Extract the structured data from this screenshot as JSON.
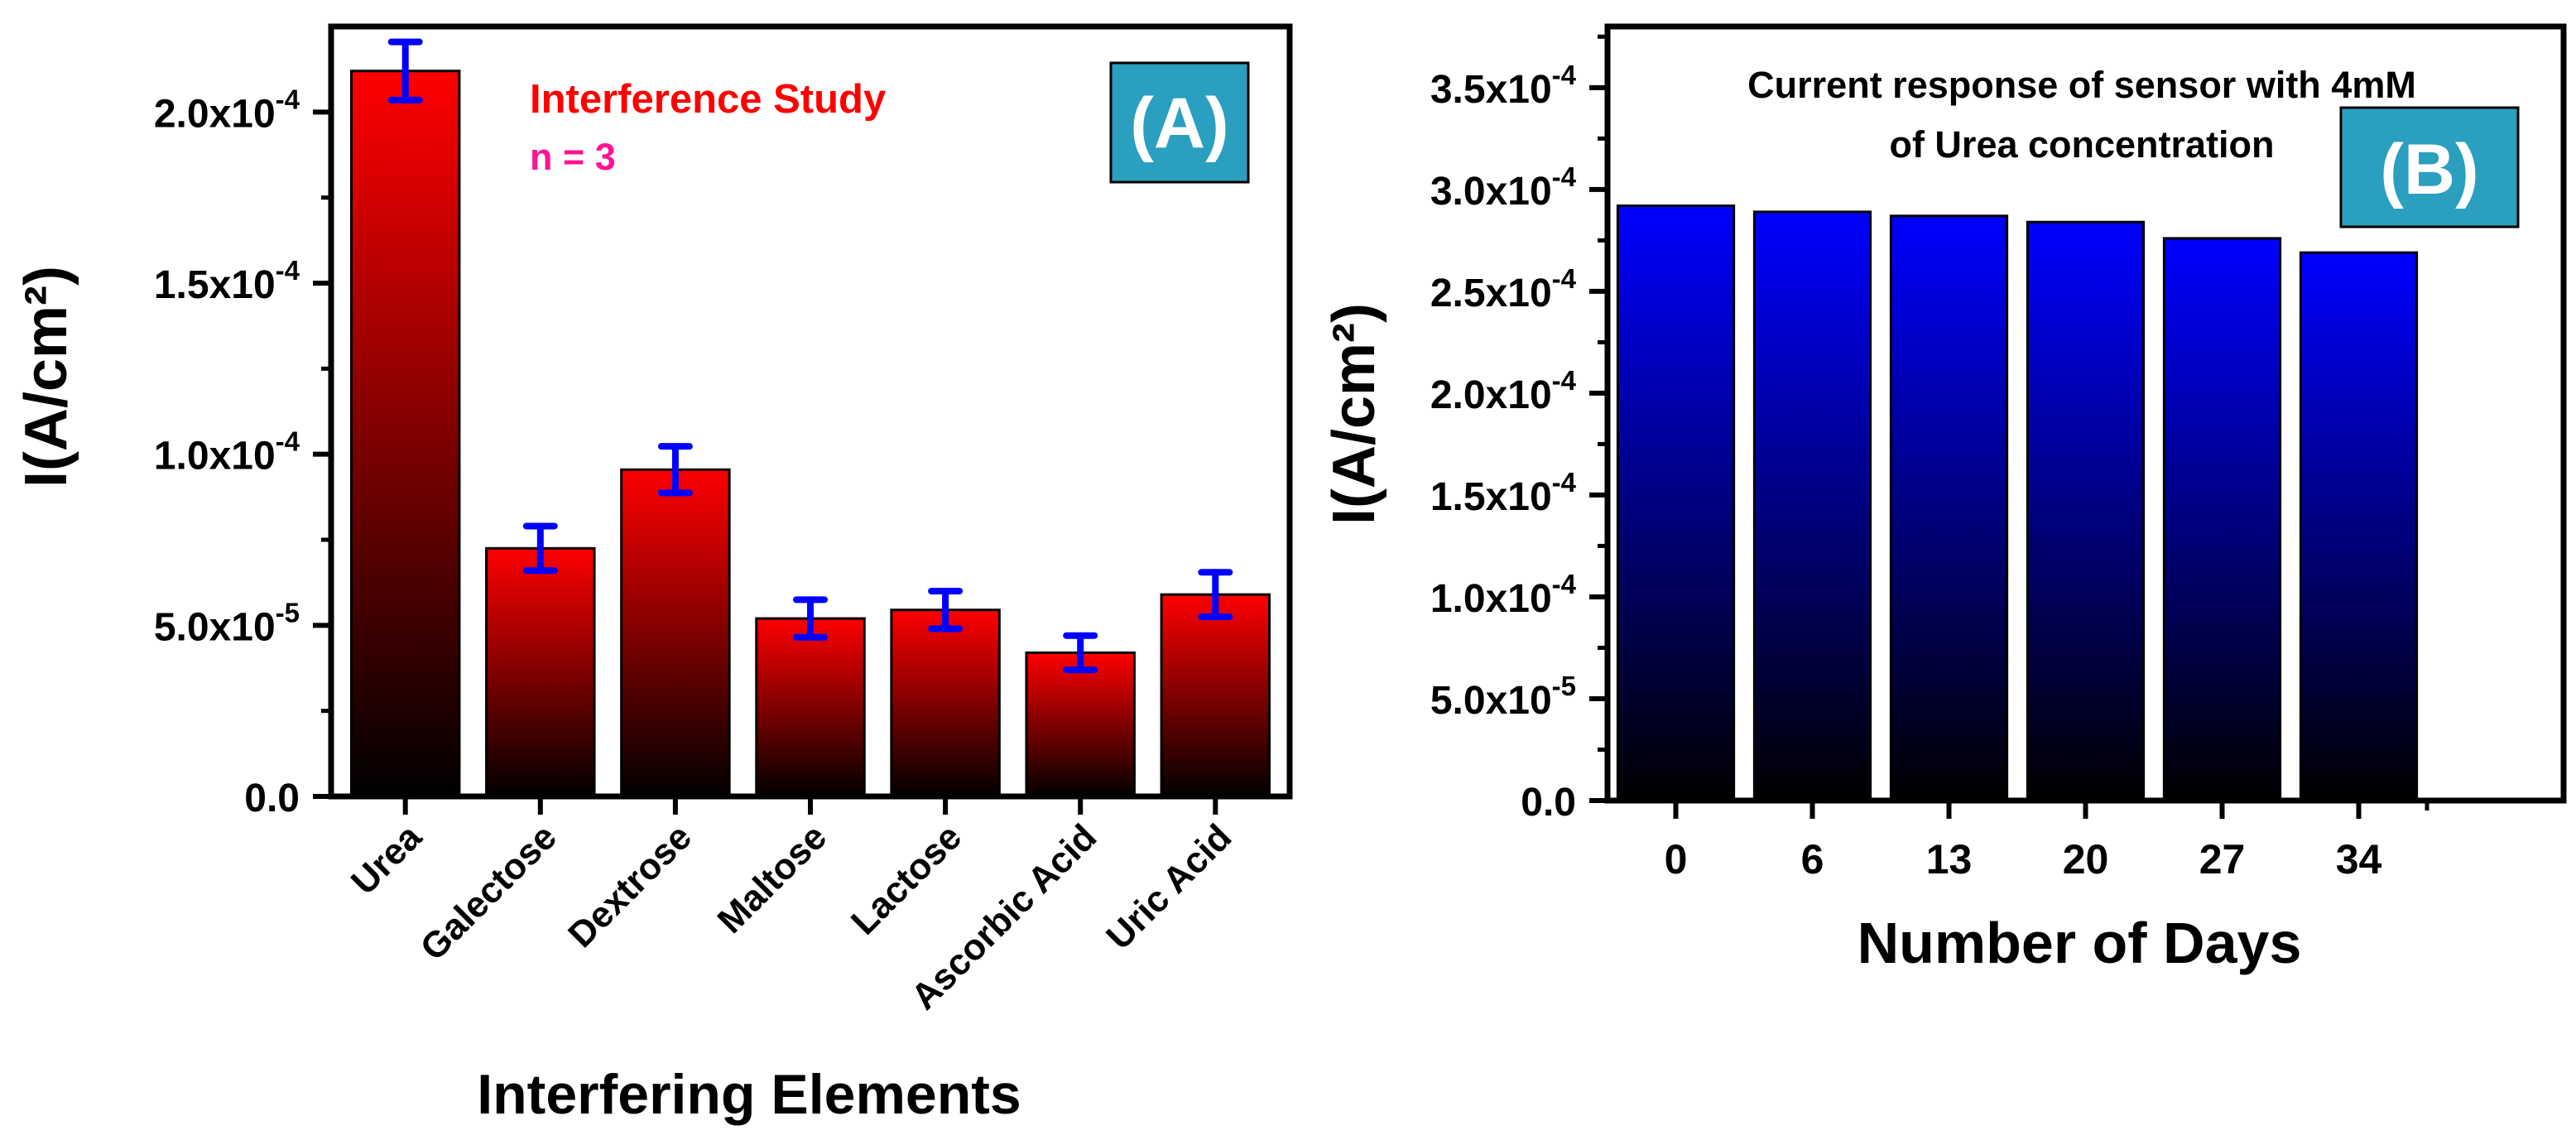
{
  "colors": {
    "axis": "#000000",
    "panel_a_bar_top": "#ff0000",
    "panel_a_bar_bottom": "#000000",
    "panel_b_bar_top": "#0000ff",
    "panel_b_bar_bottom": "#000000",
    "error_bar": "#0000ff",
    "annotation_title": "#ff0000",
    "annotation_n": "#ff1493",
    "panel_label_bg": "#2b9fbf",
    "panel_label_text": "#ffffff"
  },
  "chart_data": [
    {
      "type": "bar",
      "panel_label": "(A)",
      "title": "",
      "annotation": {
        "title": "Interference Study",
        "n": "n = 3"
      },
      "xlabel": "Interfering Elements",
      "ylabel": "I(A/cm²)",
      "ylim": [
        0,
        0.000225
      ],
      "yticks": [
        {
          "value": 0,
          "mantissa": "0.0",
          "exp": ""
        },
        {
          "value": 5e-05,
          "mantissa": "5.0x10",
          "exp": "-5"
        },
        {
          "value": 0.0001,
          "mantissa": "1.0x10",
          "exp": "-4"
        },
        {
          "value": 0.00015,
          "mantissa": "1.5x10",
          "exp": "-4"
        },
        {
          "value": 0.0002,
          "mantissa": "2.0x10",
          "exp": "-4"
        }
      ],
      "categories": [
        "Urea",
        "Galectose",
        "Dextrose",
        "Maltose",
        "Lactose",
        "Ascorbic Acid",
        "Uric Acid"
      ],
      "values": [
        0.000212,
        7.25e-05,
        9.55e-05,
        5.2e-05,
        5.45e-05,
        4.2e-05,
        5.9e-05
      ],
      "errors": [
        8.5e-06,
        6.5e-06,
        6.8e-06,
        5.5e-06,
        5.5e-06,
        5e-06,
        6.5e-06
      ]
    },
    {
      "type": "bar",
      "panel_label": "(B)",
      "title": "Current response of sensor with 4mM of Urea concentration",
      "title_lines": [
        "Current response of sensor with 4mM",
        "of Urea concentration"
      ],
      "xlabel": "Number of Days",
      "ylabel": "I(A/cm²)",
      "ylim": [
        0,
        0.00038
      ],
      "yticks": [
        {
          "value": 0,
          "mantissa": "0.0",
          "exp": ""
        },
        {
          "value": 5e-05,
          "mantissa": "5.0x10",
          "exp": "-5"
        },
        {
          "value": 0.0001,
          "mantissa": "1.0x10",
          "exp": "-4"
        },
        {
          "value": 0.00015,
          "mantissa": "1.5x10",
          "exp": "-4"
        },
        {
          "value": 0.0002,
          "mantissa": "2.0x10",
          "exp": "-4"
        },
        {
          "value": 0.00025,
          "mantissa": "2.5x10",
          "exp": "-4"
        },
        {
          "value": 0.0003,
          "mantissa": "3.0x10",
          "exp": "-4"
        },
        {
          "value": 0.00035,
          "mantissa": "3.5x10",
          "exp": "-4"
        }
      ],
      "categories": [
        "0",
        "6",
        "13",
        "20",
        "27",
        "34"
      ],
      "values": [
        0.000292,
        0.000289,
        0.000287,
        0.000284,
        0.000276,
        0.000269
      ]
    }
  ]
}
